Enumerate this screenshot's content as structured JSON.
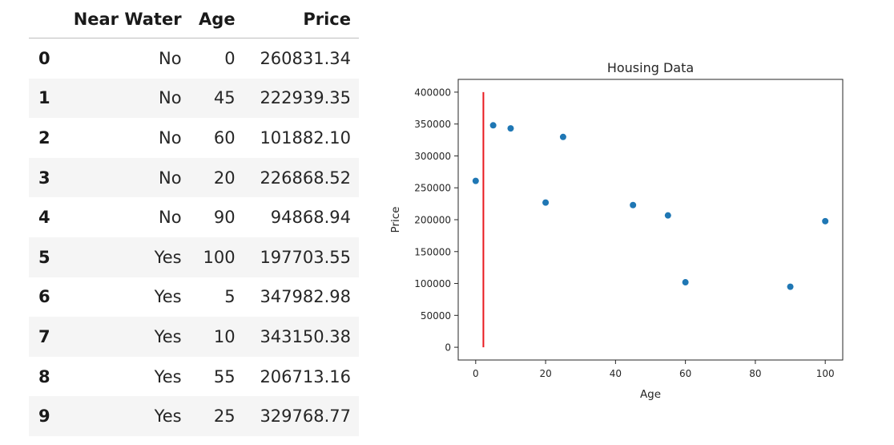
{
  "table": {
    "columns": [
      "Near Water",
      "Age",
      "Price"
    ],
    "rows": [
      {
        "index": "0",
        "near_water": "No",
        "age": "0",
        "price": "260831.34"
      },
      {
        "index": "1",
        "near_water": "No",
        "age": "45",
        "price": "222939.35"
      },
      {
        "index": "2",
        "near_water": "No",
        "age": "60",
        "price": "101882.10"
      },
      {
        "index": "3",
        "near_water": "No",
        "age": "20",
        "price": "226868.52"
      },
      {
        "index": "4",
        "near_water": "No",
        "age": "90",
        "price": "94868.94"
      },
      {
        "index": "5",
        "near_water": "Yes",
        "age": "100",
        "price": "197703.55"
      },
      {
        "index": "6",
        "near_water": "Yes",
        "age": "5",
        "price": "347982.98"
      },
      {
        "index": "7",
        "near_water": "Yes",
        "age": "10",
        "price": "343150.38"
      },
      {
        "index": "8",
        "near_water": "Yes",
        "age": "55",
        "price": "206713.16"
      },
      {
        "index": "9",
        "near_water": "Yes",
        "age": "25",
        "price": "329768.77"
      }
    ]
  },
  "chart_data": {
    "type": "scatter",
    "title": "Housing Data",
    "xlabel": "Age",
    "ylabel": "Price",
    "xlim": [
      -5,
      105
    ],
    "ylim": [
      -20000,
      420000
    ],
    "xticks": [
      0,
      20,
      40,
      60,
      80,
      100
    ],
    "yticks": [
      0,
      50000,
      100000,
      150000,
      200000,
      250000,
      300000,
      350000,
      400000
    ],
    "grid": false,
    "series": [
      {
        "x": [
          0,
          45,
          60,
          20,
          90,
          100,
          5,
          10,
          55,
          25
        ],
        "y": [
          260831.34,
          222939.35,
          101882.1,
          226868.52,
          94868.94,
          197703.55,
          347982.98,
          343150.38,
          206713.16,
          329768.77
        ],
        "color": "#1f77b4"
      }
    ],
    "vline": {
      "x": 2.2,
      "y": [
        0,
        400000
      ],
      "color": "#e8191f"
    }
  }
}
